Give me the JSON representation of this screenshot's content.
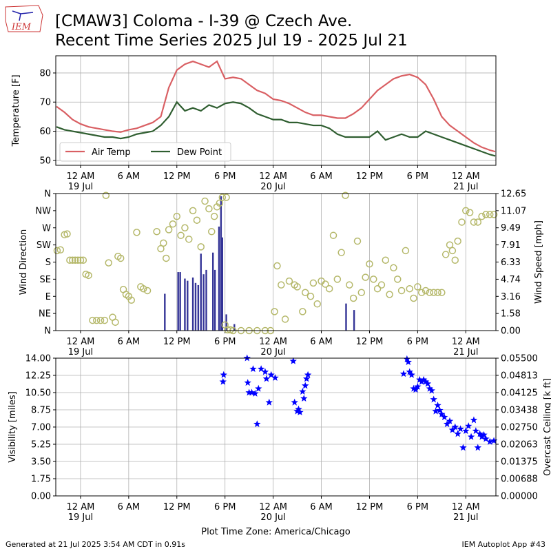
{
  "header": {
    "logo": "IEM",
    "title": "[CMAW3] Coloma - I-39 @ Czech Ave.",
    "subtitle": "Recent Time Series 2025 Jul 19 - 2025 Jul 21"
  },
  "footer": {
    "left": "Generated at 21 Jul 2025 3:54 AM CDT in 0.91s",
    "right": "IEM Autoplot App #43"
  },
  "chart_data": [
    {
      "type": "line",
      "ylabel": "Temperature [F]",
      "legend": "lower left",
      "grid": "both",
      "xlim": [
        "2025-07-18T20:55",
        "2025-07-21T03:45"
      ],
      "ylim": [
        48.3,
        85.9
      ],
      "yticks": [
        50,
        60,
        70,
        80
      ],
      "xticks": [
        {
          "value": "2025-07-19T00:00",
          "label": "12 AM\n19 Jul"
        },
        {
          "value": "2025-07-19T06:00",
          "label": "6 AM"
        },
        {
          "value": "2025-07-19T12:00",
          "label": "12 PM"
        },
        {
          "value": "2025-07-19T18:00",
          "label": "6 PM"
        },
        {
          "value": "2025-07-20T00:00",
          "label": "12 AM\n20 Jul"
        },
        {
          "value": "2025-07-20T06:00",
          "label": "6 AM"
        },
        {
          "value": "2025-07-20T12:00",
          "label": "12 PM"
        },
        {
          "value": "2025-07-20T18:00",
          "label": "6 PM"
        },
        {
          "value": "2025-07-21T00:00",
          "label": "12 AM\n21 Jul"
        }
      ],
      "x": [
        "2025-07-18T21:00",
        "2025-07-18T22:00",
        "2025-07-18T23:00",
        "2025-07-19T00:00",
        "2025-07-19T01:00",
        "2025-07-19T02:00",
        "2025-07-19T03:00",
        "2025-07-19T04:00",
        "2025-07-19T05:00",
        "2025-07-19T06:00",
        "2025-07-19T07:00",
        "2025-07-19T08:00",
        "2025-07-19T09:00",
        "2025-07-19T10:00",
        "2025-07-19T11:00",
        "2025-07-19T12:00",
        "2025-07-19T13:00",
        "2025-07-19T14:00",
        "2025-07-19T15:00",
        "2025-07-19T16:00",
        "2025-07-19T17:00",
        "2025-07-19T18:00",
        "2025-07-19T19:00",
        "2025-07-19T20:00",
        "2025-07-19T21:00",
        "2025-07-19T22:00",
        "2025-07-19T23:00",
        "2025-07-20T00:00",
        "2025-07-20T01:00",
        "2025-07-20T02:00",
        "2025-07-20T03:00",
        "2025-07-20T04:00",
        "2025-07-20T05:00",
        "2025-07-20T06:00",
        "2025-07-20T07:00",
        "2025-07-20T08:00",
        "2025-07-20T09:00",
        "2025-07-20T10:00",
        "2025-07-20T11:00",
        "2025-07-20T12:00",
        "2025-07-20T13:00",
        "2025-07-20T14:00",
        "2025-07-20T15:00",
        "2025-07-20T16:00",
        "2025-07-20T17:00",
        "2025-07-20T18:00",
        "2025-07-20T19:00",
        "2025-07-20T20:00",
        "2025-07-20T21:00",
        "2025-07-20T22:00",
        "2025-07-20T23:00",
        "2025-07-21T00:00",
        "2025-07-21T01:00",
        "2025-07-21T02:00",
        "2025-07-21T03:00",
        "2025-07-21T03:40"
      ],
      "series": [
        {
          "name": "Air Temp",
          "color": "#d95f63",
          "values": [
            68.5,
            66.5,
            64,
            62.5,
            61.5,
            61,
            60.5,
            60,
            59.7,
            60.5,
            61,
            62,
            63,
            65,
            75,
            81,
            83,
            84,
            83,
            82,
            84,
            78,
            78.5,
            78,
            76,
            74,
            73,
            71,
            70.5,
            69.5,
            68,
            66.5,
            65.5,
            65.5,
            65,
            64.5,
            64.5,
            66,
            68,
            71,
            74,
            76,
            78,
            79,
            79.5,
            78.5,
            76,
            71,
            65,
            62,
            60,
            58,
            56,
            54.5,
            53.5,
            53
          ]
        },
        {
          "name": "Dew Point",
          "color": "#2f5e30",
          "values": [
            61.5,
            60.5,
            60,
            59.5,
            59,
            58.5,
            58,
            58,
            57.5,
            58,
            59,
            59.5,
            60,
            62,
            65,
            70,
            67,
            68,
            67,
            69,
            68,
            69.5,
            70,
            69.5,
            68,
            66,
            65,
            64,
            64,
            63,
            63,
            62.5,
            62,
            62,
            61,
            59,
            58,
            58,
            58,
            58,
            60,
            57,
            58,
            59,
            58,
            58,
            60,
            59,
            58,
            57,
            56,
            55,
            54,
            53,
            52,
            51.5
          ]
        }
      ]
    },
    {
      "type": "scatter",
      "ylabel": "Wind Direction",
      "y2label": "Wind Speed [mph]",
      "grid": "x",
      "xlim": [
        "2025-07-18T20:55",
        "2025-07-21T03:45"
      ],
      "ylim": [
        0,
        360
      ],
      "y2lim": [
        0,
        12.65
      ],
      "yticks": [
        {
          "value": 0,
          "label": "N"
        },
        {
          "value": 45,
          "label": "NE"
        },
        {
          "value": 90,
          "label": "E"
        },
        {
          "value": 135,
          "label": "SE"
        },
        {
          "value": 180,
          "label": "S"
        },
        {
          "value": 225,
          "label": "SW"
        },
        {
          "value": 270,
          "label": "W"
        },
        {
          "value": 315,
          "label": "NW"
        },
        {
          "value": 360,
          "label": "N"
        }
      ],
      "y2ticks": [
        {
          "value": 0,
          "label": "0.00"
        },
        1.58,
        3.16,
        4.74,
        6.33,
        7.91,
        9.49,
        11.07,
        12.65
      ],
      "xticks": [
        {
          "value": "2025-07-19T00:00",
          "label": "12 AM\n19 Jul"
        },
        {
          "value": "2025-07-19T06:00",
          "label": "6 AM"
        },
        {
          "value": "2025-07-19T12:00",
          "label": "12 PM"
        },
        {
          "value": "2025-07-19T18:00",
          "label": "6 PM"
        },
        {
          "value": "2025-07-20T00:00",
          "label": "12 AM\n20 Jul"
        },
        {
          "value": "2025-07-20T06:00",
          "label": "6 AM"
        },
        {
          "value": "2025-07-20T12:00",
          "label": "12 PM"
        },
        {
          "value": "2025-07-20T18:00",
          "label": "6 PM"
        },
        {
          "value": "2025-07-21T00:00",
          "label": "12 AM\n21 Jul"
        }
      ],
      "series": [
        {
          "type": "bar",
          "axis": "y2",
          "color": "#353597",
          "x": [
            "2025-07-19T10:30",
            "2025-07-19T12:10",
            "2025-07-19T12:25",
            "2025-07-19T13:00",
            "2025-07-19T13:20",
            "2025-07-19T14:00",
            "2025-07-19T14:20",
            "2025-07-19T14:40",
            "2025-07-19T15:00",
            "2025-07-19T15:20",
            "2025-07-19T15:40",
            "2025-07-19T16:30",
            "2025-07-19T16:45",
            "2025-07-19T17:15",
            "2025-07-19T17:30",
            "2025-07-19T17:40",
            "2025-07-19T18:10",
            "2025-07-19T19:10",
            "2025-07-20T09:05",
            "2025-07-20T10:05"
          ],
          "values": [
            3.4,
            5.4,
            5.4,
            4.8,
            4.6,
            4.9,
            4.4,
            4.2,
            7.1,
            5.2,
            5.6,
            7.2,
            5.6,
            9.6,
            12.4,
            8.6,
            1.5,
            0.6,
            2.5,
            1.9
          ]
        },
        {
          "type": "scatter",
          "color": "#b5b86a",
          "x": [
            "2025-07-18T21:05",
            "2025-07-18T21:30",
            "2025-07-18T22:00",
            "2025-07-18T22:20",
            "2025-07-18T22:40",
            "2025-07-18T23:00",
            "2025-07-18T23:20",
            "2025-07-18T23:40",
            "2025-07-19T00:00",
            "2025-07-19T00:20",
            "2025-07-19T00:40",
            "2025-07-19T01:00",
            "2025-07-19T01:30",
            "2025-07-19T02:00",
            "2025-07-19T02:30",
            "2025-07-19T03:00",
            "2025-07-19T03:10",
            "2025-07-19T03:30",
            "2025-07-19T04:00",
            "2025-07-19T04:20",
            "2025-07-19T04:40",
            "2025-07-19T05:00",
            "2025-07-19T05:20",
            "2025-07-19T05:40",
            "2025-07-19T06:00",
            "2025-07-19T06:20",
            "2025-07-19T07:00",
            "2025-07-19T07:30",
            "2025-07-19T07:50",
            "2025-07-19T08:20",
            "2025-07-19T09:30",
            "2025-07-19T10:00",
            "2025-07-19T10:20",
            "2025-07-19T10:40",
            "2025-07-19T11:00",
            "2025-07-19T11:30",
            "2025-07-19T12:00",
            "2025-07-19T12:30",
            "2025-07-19T13:00",
            "2025-07-19T13:30",
            "2025-07-19T14:00",
            "2025-07-19T14:30",
            "2025-07-19T15:00",
            "2025-07-19T15:30",
            "2025-07-19T16:00",
            "2025-07-19T16:20",
            "2025-07-19T16:40",
            "2025-07-19T17:00",
            "2025-07-19T17:20",
            "2025-07-19T17:40",
            "2025-07-19T18:00",
            "2025-07-19T18:10",
            "2025-07-19T18:20",
            "2025-07-19T18:40",
            "2025-07-19T19:00",
            "2025-07-19T20:00",
            "2025-07-19T21:00",
            "2025-07-19T22:00",
            "2025-07-19T23:00",
            "2025-07-19T23:40",
            "2025-07-20T00:10",
            "2025-07-20T00:30",
            "2025-07-20T01:00",
            "2025-07-20T01:30",
            "2025-07-20T02:00",
            "2025-07-20T02:40",
            "2025-07-20T03:00",
            "2025-07-20T03:40",
            "2025-07-20T04:00",
            "2025-07-20T04:40",
            "2025-07-20T05:00",
            "2025-07-20T05:30",
            "2025-07-20T06:00",
            "2025-07-20T06:30",
            "2025-07-20T07:00",
            "2025-07-20T07:30",
            "2025-07-20T08:00",
            "2025-07-20T08:30",
            "2025-07-20T09:00",
            "2025-07-20T09:30",
            "2025-07-20T10:00",
            "2025-07-20T10:30",
            "2025-07-20T11:00",
            "2025-07-20T11:30",
            "2025-07-20T12:00",
            "2025-07-20T12:30",
            "2025-07-20T13:00",
            "2025-07-20T13:30",
            "2025-07-20T14:00",
            "2025-07-20T14:30",
            "2025-07-20T15:00",
            "2025-07-20T15:30",
            "2025-07-20T16:00",
            "2025-07-20T16:30",
            "2025-07-20T17:00",
            "2025-07-20T17:30",
            "2025-07-20T18:00",
            "2025-07-20T18:30",
            "2025-07-20T19:00",
            "2025-07-20T19:30",
            "2025-07-20T20:00",
            "2025-07-20T20:30",
            "2025-07-20T21:00",
            "2025-07-20T21:30",
            "2025-07-20T22:00",
            "2025-07-20T22:20",
            "2025-07-20T22:40",
            "2025-07-20T23:00",
            "2025-07-20T23:30",
            "2025-07-21T00:00",
            "2025-07-21T00:30",
            "2025-07-21T01:00",
            "2025-07-21T01:30",
            "2025-07-21T02:00",
            "2025-07-21T02:30",
            "2025-07-21T03:00",
            "2025-07-21T03:30"
          ],
          "values": [
            210,
            212,
            252,
            254,
            185,
            185,
            185,
            185,
            185,
            185,
            148,
            145,
            27,
            27,
            27,
            27,
            355,
            178,
            35,
            22,
            195,
            190,
            108,
            95,
            90,
            80,
            258,
            115,
            110,
            105,
            260,
            215,
            230,
            190,
            265,
            280,
            300,
            250,
            270,
            240,
            315,
            290,
            220,
            340,
            320,
            260,
            300,
            325,
            335,
            350,
            15,
            350,
            2,
            2,
            0,
            0,
            0,
            0,
            0,
            0,
            50,
            170,
            120,
            30,
            130,
            120,
            115,
            50,
            100,
            90,
            125,
            70,
            130,
            122,
            110,
            250,
            135,
            205,
            355,
            120,
            85,
            235,
            100,
            140,
            175,
            135,
            110,
            120,
            185,
            95,
            165,
            135,
            105,
            210,
            110,
            85,
            115,
            100,
            105,
            100,
            100,
            100,
            100,
            200,
            225,
            210,
            185,
            235,
            285,
            315,
            310,
            285,
            285,
            300,
            305,
            305,
            305
          ]
        }
      ]
    },
    {
      "type": "scatter",
      "ylabel": "Visibility [miles]",
      "y2label": "Overcast Ceiling [k ft]",
      "y2label_color": "#008000",
      "xlabel": "Plot Time Zone: America/Chicago",
      "grid": "both",
      "xlim": [
        "2025-07-18T20:55",
        "2025-07-21T03:45"
      ],
      "ylim": [
        0,
        14
      ],
      "y2lim": [
        0,
        0.055
      ],
      "yticks": [
        {
          "value": 0,
          "label": "0.00"
        },
        1.75,
        {
          "value": 3.5,
          "label": "3.50"
        },
        5.25,
        {
          "value": 7,
          "label": "7.00"
        },
        8.75,
        {
          "value": 10.5,
          "label": "10.50"
        },
        12.25,
        {
          "value": 14,
          "label": "14.00"
        }
      ],
      "y2ticks": [
        {
          "value": 0,
          "label": "0.00000"
        },
        0.00688,
        0.01375,
        0.02063,
        {
          "value": 0.0275,
          "label": "0.02750"
        },
        0.03438,
        0.04125,
        0.04813,
        {
          "value": 0.055,
          "label": "0.05500"
        }
      ],
      "xticks": [
        {
          "value": "2025-07-19T00:00",
          "label": "12 AM\n19 Jul"
        },
        {
          "value": "2025-07-19T06:00",
          "label": "6 AM"
        },
        {
          "value": "2025-07-19T12:00",
          "label": "12 PM"
        },
        {
          "value": "2025-07-19T18:00",
          "label": "6 PM"
        },
        {
          "value": "2025-07-20T00:00",
          "label": "12 AM\n20 Jul"
        },
        {
          "value": "2025-07-20T06:00",
          "label": "6 AM"
        },
        {
          "value": "2025-07-20T12:00",
          "label": "12 PM"
        },
        {
          "value": "2025-07-20T18:00",
          "label": "6 PM"
        },
        {
          "value": "2025-07-21T00:00",
          "label": "12 AM\n21 Jul"
        }
      ],
      "series": [
        {
          "type": "star",
          "color": "#0000ff",
          "x": [
            "2025-07-19T17:45",
            "2025-07-19T17:50",
            "2025-07-19T20:45",
            "2025-07-19T20:50",
            "2025-07-19T21:00",
            "2025-07-19T21:20",
            "2025-07-19T21:30",
            "2025-07-19T21:45",
            "2025-07-19T22:00",
            "2025-07-19T22:10",
            "2025-07-19T22:30",
            "2025-07-19T23:00",
            "2025-07-19T23:10",
            "2025-07-19T23:30",
            "2025-07-19T23:45",
            "2025-07-20T00:15",
            "2025-07-20T02:30",
            "2025-07-20T02:40",
            "2025-07-20T03:00",
            "2025-07-20T03:10",
            "2025-07-20T03:20",
            "2025-07-20T03:40",
            "2025-07-20T03:50",
            "2025-07-20T04:00",
            "2025-07-20T04:10",
            "2025-07-20T04:20",
            "2025-07-20T16:15",
            "2025-07-20T16:40",
            "2025-07-20T16:50",
            "2025-07-20T17:00",
            "2025-07-20T17:15",
            "2025-07-20T17:30",
            "2025-07-20T17:45",
            "2025-07-20T18:00",
            "2025-07-20T18:15",
            "2025-07-20T18:30",
            "2025-07-20T18:45",
            "2025-07-20T19:00",
            "2025-07-20T19:15",
            "2025-07-20T19:30",
            "2025-07-20T19:45",
            "2025-07-20T20:00",
            "2025-07-20T20:15",
            "2025-07-20T20:30",
            "2025-07-20T20:45",
            "2025-07-20T21:00",
            "2025-07-20T21:20",
            "2025-07-20T21:40",
            "2025-07-20T22:00",
            "2025-07-20T22:20",
            "2025-07-20T22:40",
            "2025-07-20T23:00",
            "2025-07-20T23:20",
            "2025-07-20T23:40",
            "2025-07-21T00:00",
            "2025-07-21T00:20",
            "2025-07-21T00:40",
            "2025-07-21T01:00",
            "2025-07-21T01:15",
            "2025-07-21T01:30",
            "2025-07-21T01:45",
            "2025-07-21T02:00",
            "2025-07-21T02:15",
            "2025-07-21T02:30",
            "2025-07-21T03:00",
            "2025-07-21T03:30"
          ],
          "values": [
            11.6,
            12.3,
            14.0,
            11.5,
            10.5,
            10.5,
            12.9,
            10.4,
            7.3,
            10.9,
            12.9,
            12.6,
            11.9,
            9.5,
            12.3,
            12.0,
            13.7,
            9.5,
            8.6,
            8.8,
            8.5,
            10.6,
            9.9,
            11.2,
            11.9,
            12.3,
            12.4,
            13.9,
            13.6,
            12.6,
            12.3,
            10.9,
            10.8,
            11.1,
            11.8,
            11.6,
            11.8,
            11.6,
            11.4,
            10.9,
            10.7,
            9.8,
            8.6,
            9.2,
            8.7,
            8.3,
            8.0,
            7.3,
            7.6,
            6.7,
            7.0,
            6.3,
            6.8,
            4.9,
            6.6,
            7.1,
            6.0,
            7.7,
            6.6,
            4.9,
            6.3,
            6.0,
            6.2,
            5.8,
            5.5,
            5.6
          ]
        }
      ]
    }
  ]
}
